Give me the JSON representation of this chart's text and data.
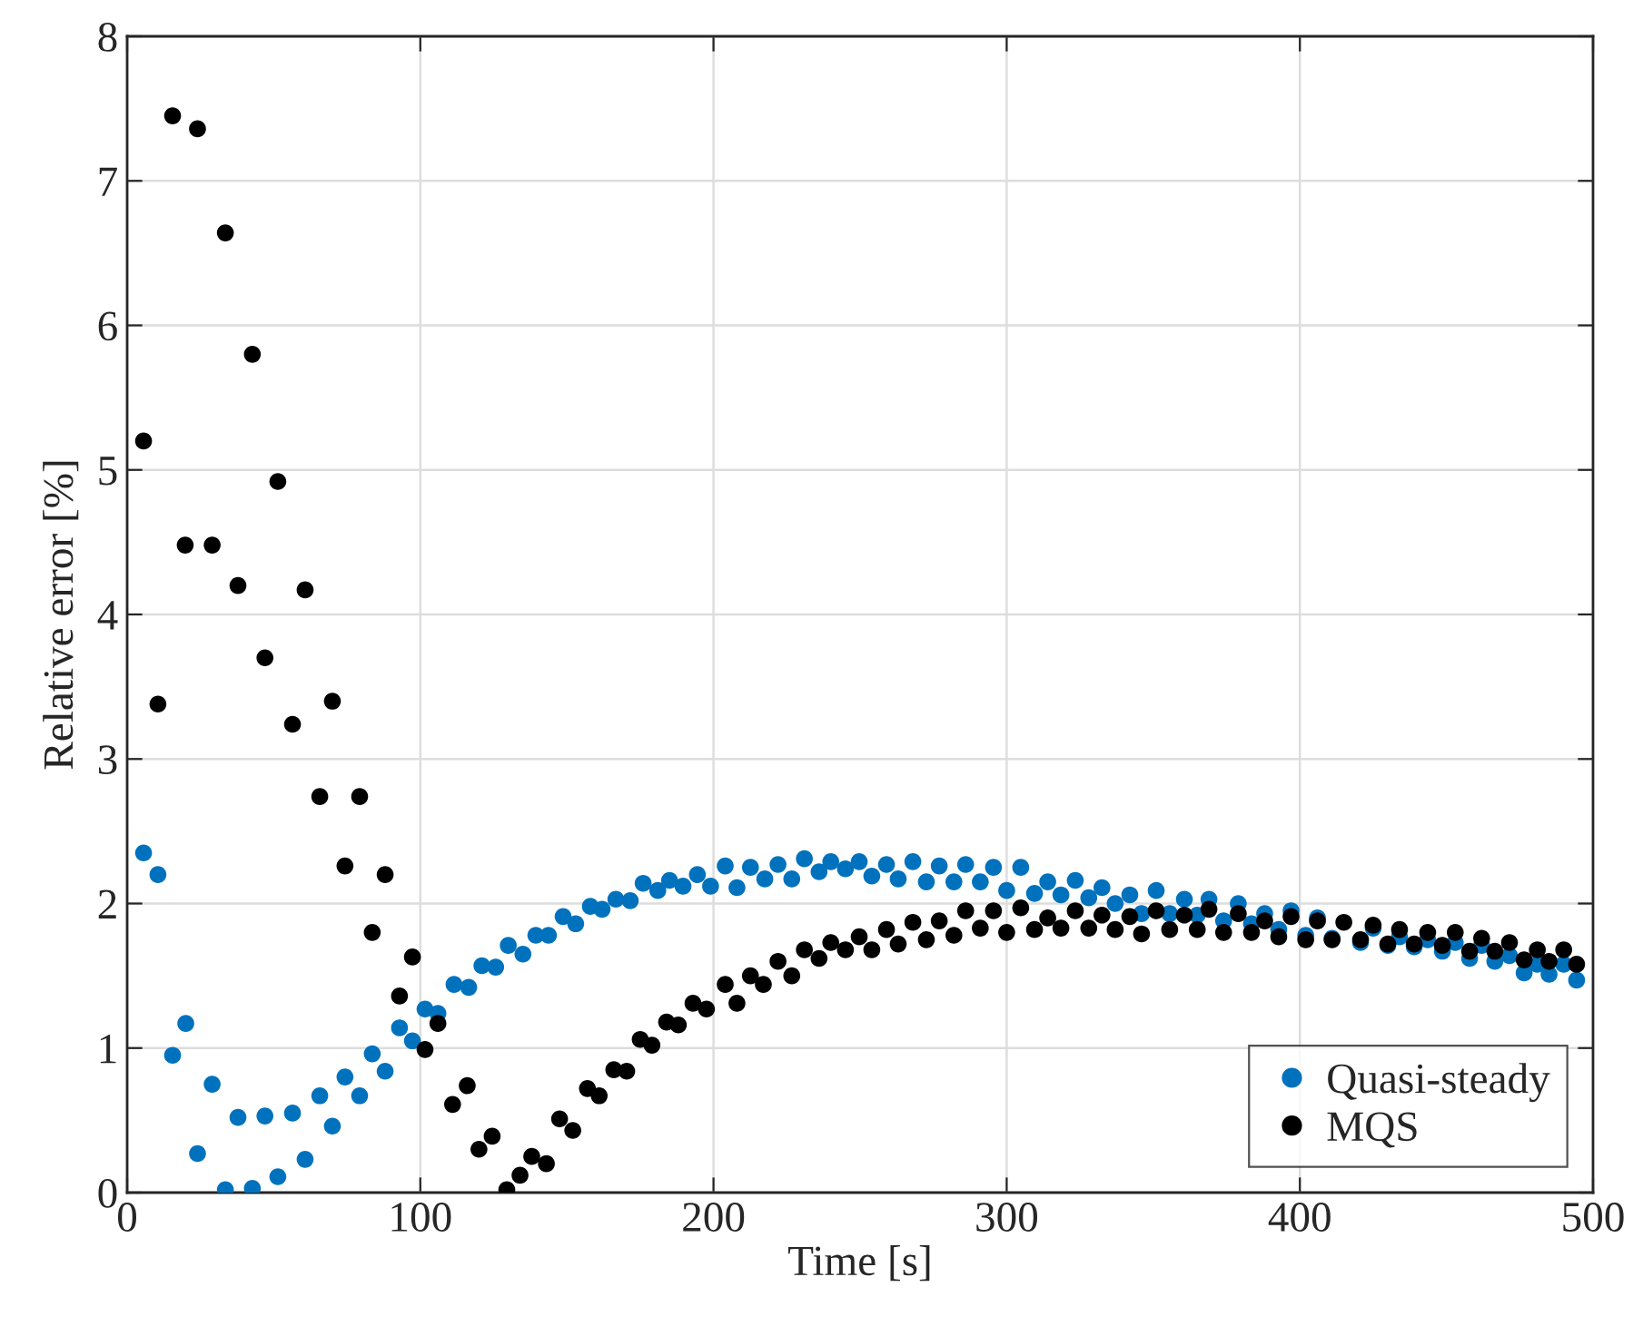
{
  "chart_data": {
    "type": "scatter",
    "xlabel": "Time [s]",
    "ylabel": "Relative error [%]",
    "xlim": [
      0,
      500
    ],
    "ylim": [
      0,
      8
    ],
    "xticks": [
      0,
      100,
      200,
      300,
      400,
      500
    ],
    "yticks": [
      0,
      1,
      2,
      3,
      4,
      5,
      6,
      7,
      8
    ],
    "grid": true,
    "legend": "bottom right",
    "marker": "circle",
    "series": [
      {
        "name": "Quasi-steady",
        "color": "#0072bd",
        "x": [
          5.6,
          10.5,
          15.5,
          20,
          24,
          29,
          33.5,
          37.8,
          42.7,
          47,
          51.4,
          56.4,
          60.7,
          65.7,
          70,
          74.3,
          79.3,
          83.6,
          88,
          92.9,
          97.3,
          101.6,
          106,
          111.5,
          116.5,
          121,
          125.7,
          130,
          135,
          139.4,
          143.7,
          148.7,
          153,
          158,
          162,
          166.7,
          171.6,
          176,
          181,
          185,
          189.6,
          194.5,
          199,
          204,
          208,
          212.6,
          217.5,
          222,
          226.7,
          231,
          236,
          240,
          245,
          249.7,
          254,
          259,
          263,
          268,
          272.6,
          277,
          282,
          286,
          291,
          295.5,
          300,
          304.8,
          309.5,
          314,
          318.5,
          323.4,
          328,
          332.5,
          337,
          342,
          346,
          351,
          355.6,
          360.6,
          365,
          369,
          374,
          379,
          383.5,
          388,
          392.8,
          397,
          402,
          406,
          411,
          415,
          420.7,
          425,
          430,
          434,
          439,
          443.6,
          448.6,
          453,
          457.9,
          462,
          466.5,
          471.5,
          476.5,
          481,
          485,
          490,
          494.4
        ],
        "values": [
          2.35,
          2.2,
          0.95,
          1.17,
          0.27,
          0.75,
          0.02,
          0.52,
          0.03,
          0.53,
          0.11,
          0.55,
          0.23,
          0.67,
          0.46,
          0.8,
          0.67,
          0.96,
          0.84,
          1.14,
          1.05,
          1.27,
          1.24,
          1.44,
          1.42,
          1.57,
          1.56,
          1.71,
          1.65,
          1.78,
          1.78,
          1.91,
          1.86,
          1.98,
          1.96,
          2.03,
          2.02,
          2.14,
          2.09,
          2.16,
          2.12,
          2.2,
          2.12,
          2.26,
          2.11,
          2.25,
          2.17,
          2.27,
          2.17,
          2.31,
          2.22,
          2.29,
          2.24,
          2.29,
          2.19,
          2.27,
          2.17,
          2.29,
          2.15,
          2.26,
          2.15,
          2.27,
          2.15,
          2.25,
          2.09,
          2.25,
          2.07,
          2.15,
          2.06,
          2.16,
          2.04,
          2.11,
          2.0,
          2.06,
          1.93,
          2.09,
          1.93,
          2.03,
          1.92,
          2.03,
          1.88,
          2.0,
          1.86,
          1.93,
          1.82,
          1.95,
          1.78,
          1.9,
          1.76,
          null,
          1.73,
          1.83,
          1.71,
          1.77,
          1.7,
          1.75,
          1.67,
          1.73,
          1.62,
          1.71,
          1.6,
          1.64,
          1.52,
          1.58,
          1.51,
          1.58,
          1.47
        ]
      },
      {
        "name": "MQS",
        "color": "#000000",
        "x": [
          5.6,
          10.5,
          15.5,
          19.8,
          24,
          29,
          33.5,
          37.8,
          42.7,
          47,
          51.4,
          56.4,
          60.7,
          65.7,
          70,
          74.3,
          79.3,
          83.6,
          88,
          92.9,
          97.3,
          101.6,
          106,
          111,
          116,
          120,
          124.5,
          129.5,
          134,
          138,
          143,
          147.5,
          152,
          157,
          161,
          166,
          170.4,
          175,
          179,
          184,
          188,
          193,
          197.6,
          204,
          208,
          212.6,
          217,
          222,
          226.7,
          231,
          236,
          240,
          245,
          249.7,
          254,
          259,
          263,
          268,
          272.6,
          277,
          282,
          286,
          291,
          295.5,
          300,
          304.8,
          309.5,
          314,
          318.5,
          323.4,
          328,
          332.5,
          337,
          342,
          346,
          351,
          355.6,
          360.6,
          365,
          369,
          374,
          379,
          383.5,
          388,
          392.8,
          397,
          402,
          406,
          411,
          415,
          420.7,
          425,
          430,
          434,
          439,
          443.6,
          448.6,
          453,
          457.9,
          462,
          466.5,
          471.5,
          476.5,
          481,
          485,
          490,
          494.4
        ],
        "values": [
          5.2,
          3.38,
          7.45,
          4.48,
          7.36,
          4.48,
          6.64,
          4.2,
          5.8,
          3.7,
          4.92,
          3.24,
          4.17,
          2.74,
          3.4,
          2.26,
          2.74,
          1.8,
          2.2,
          1.36,
          1.63,
          0.99,
          1.17,
          0.61,
          0.74,
          0.3,
          0.39,
          0.02,
          0.12,
          0.25,
          0.2,
          0.51,
          0.43,
          0.72,
          0.67,
          0.85,
          0.84,
          1.06,
          1.02,
          1.18,
          1.16,
          1.31,
          1.27,
          1.44,
          1.31,
          1.5,
          1.44,
          1.6,
          1.5,
          1.68,
          1.62,
          1.73,
          1.68,
          1.77,
          1.68,
          1.82,
          1.72,
          1.87,
          1.75,
          1.88,
          1.78,
          1.95,
          1.83,
          1.95,
          1.8,
          1.97,
          1.82,
          1.9,
          1.83,
          1.95,
          1.83,
          1.92,
          1.82,
          1.91,
          1.79,
          1.95,
          1.82,
          1.92,
          1.82,
          1.96,
          1.8,
          1.93,
          1.8,
          1.88,
          1.77,
          1.91,
          1.75,
          1.88,
          1.75,
          1.87,
          1.75,
          1.85,
          1.72,
          1.82,
          1.72,
          1.8,
          1.71,
          1.8,
          1.67,
          1.76,
          1.67,
          1.73,
          1.61,
          1.68,
          1.6,
          1.68,
          1.58
        ]
      }
    ]
  }
}
